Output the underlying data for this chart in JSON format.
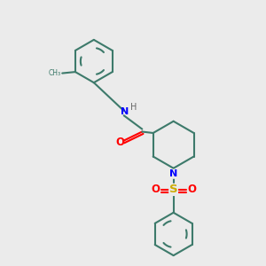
{
  "background_color": "#ebebeb",
  "bond_color": "#3d7a6b",
  "N_color": "#0000ff",
  "O_color": "#ff0000",
  "S_color": "#ccaa00",
  "line_width": 1.5,
  "figsize": [
    3.0,
    3.0
  ],
  "dpi": 100,
  "xlim": [
    0,
    10
  ],
  "ylim": [
    0,
    10
  ]
}
